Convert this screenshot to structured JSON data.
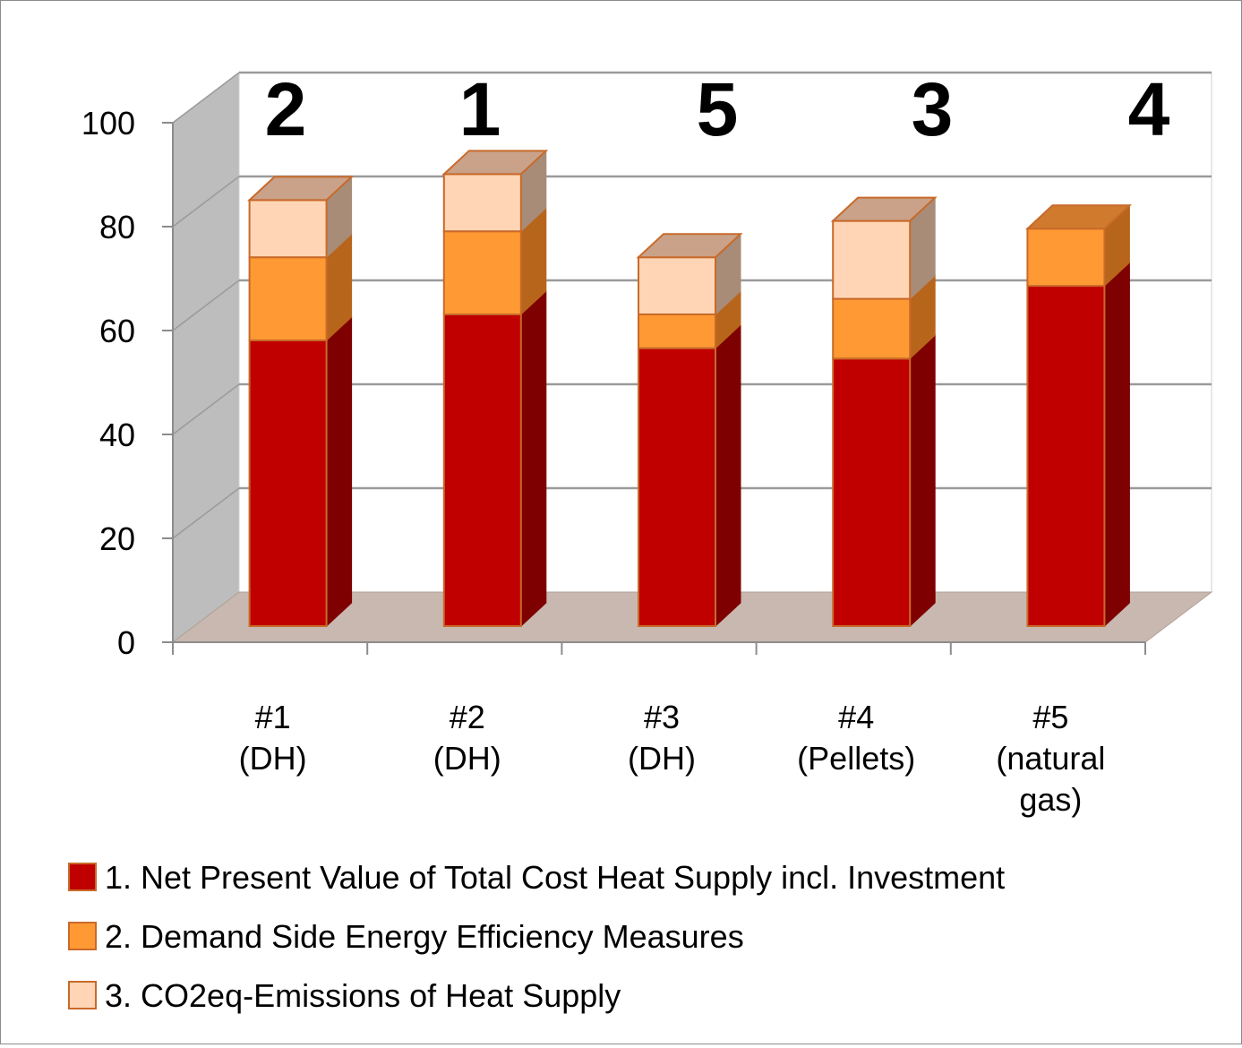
{
  "chart_data": {
    "type": "bar",
    "stacked": true,
    "three_d": true,
    "categories": [
      [
        "#1",
        "(DH)"
      ],
      [
        "#2",
        "(DH)"
      ],
      [
        "#3",
        "(DH)"
      ],
      [
        "#4",
        "(Pellets)"
      ],
      [
        "#5",
        "(natural",
        "gas)"
      ]
    ],
    "rank_labels": [
      "2",
      "1",
      "5",
      "3",
      "4"
    ],
    "series": [
      {
        "name": "1. Net Present Value of Total Cost Heat Supply incl. Investment",
        "values": [
          55,
          60,
          53.5,
          51.5,
          65.5
        ],
        "color": "#C00000",
        "side": "#7F0000",
        "top": "#8B2A2A"
      },
      {
        "name": "2. Demand Side Energy Efficiency Measures",
        "values": [
          16,
          16,
          6.5,
          11.5,
          11
        ],
        "color": "#FF9933",
        "side": "#B8651C",
        "top": "#D07A2E"
      },
      {
        "name": "3. CO2eq-Emissions of Heat Supply",
        "values": [
          11,
          11,
          11,
          15,
          0
        ],
        "color": "#FFD5B5",
        "side": "#A88C78",
        "top": "#C9A289"
      }
    ],
    "ylim": [
      0,
      100
    ],
    "yticks": [
      0,
      20,
      40,
      60,
      80,
      100
    ],
    "grid": true,
    "legend": "bottom"
  }
}
